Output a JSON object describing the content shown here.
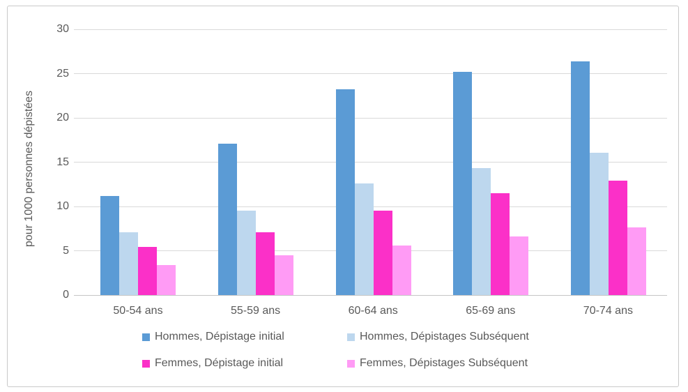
{
  "chart_data": {
    "type": "bar",
    "title": "",
    "xlabel": "",
    "ylabel": "pour 1000 personnes dépistées",
    "categories": [
      "50-54 ans",
      "55-59 ans",
      "60-64 ans",
      "65-69 ans",
      "70-74 ans"
    ],
    "series": [
      {
        "name": "Hommes, Dépistage initial",
        "color": "#5B9BD5",
        "values": [
          11.2,
          17.1,
          23.2,
          25.2,
          26.4
        ]
      },
      {
        "name": "Hommes, Dépistages Subséquent",
        "color": "#BDD7EE",
        "values": [
          7.1,
          9.5,
          12.6,
          14.3,
          16.1
        ]
      },
      {
        "name": "Femmes, Dépistage initial",
        "color": "#FB30C8",
        "values": [
          5.4,
          7.1,
          9.5,
          11.5,
          12.9
        ]
      },
      {
        "name": "Femmes, Dépistages Subséquent",
        "color": "#FF9BF5",
        "values": [
          3.4,
          4.5,
          5.6,
          6.6,
          7.6
        ]
      }
    ],
    "ylim": [
      0,
      30
    ],
    "yticks": [
      0,
      5,
      10,
      15,
      20,
      25,
      30
    ],
    "grid": true,
    "legend_position": "bottom",
    "grid_color": "#d9d9d9",
    "text_color": "#595959"
  }
}
